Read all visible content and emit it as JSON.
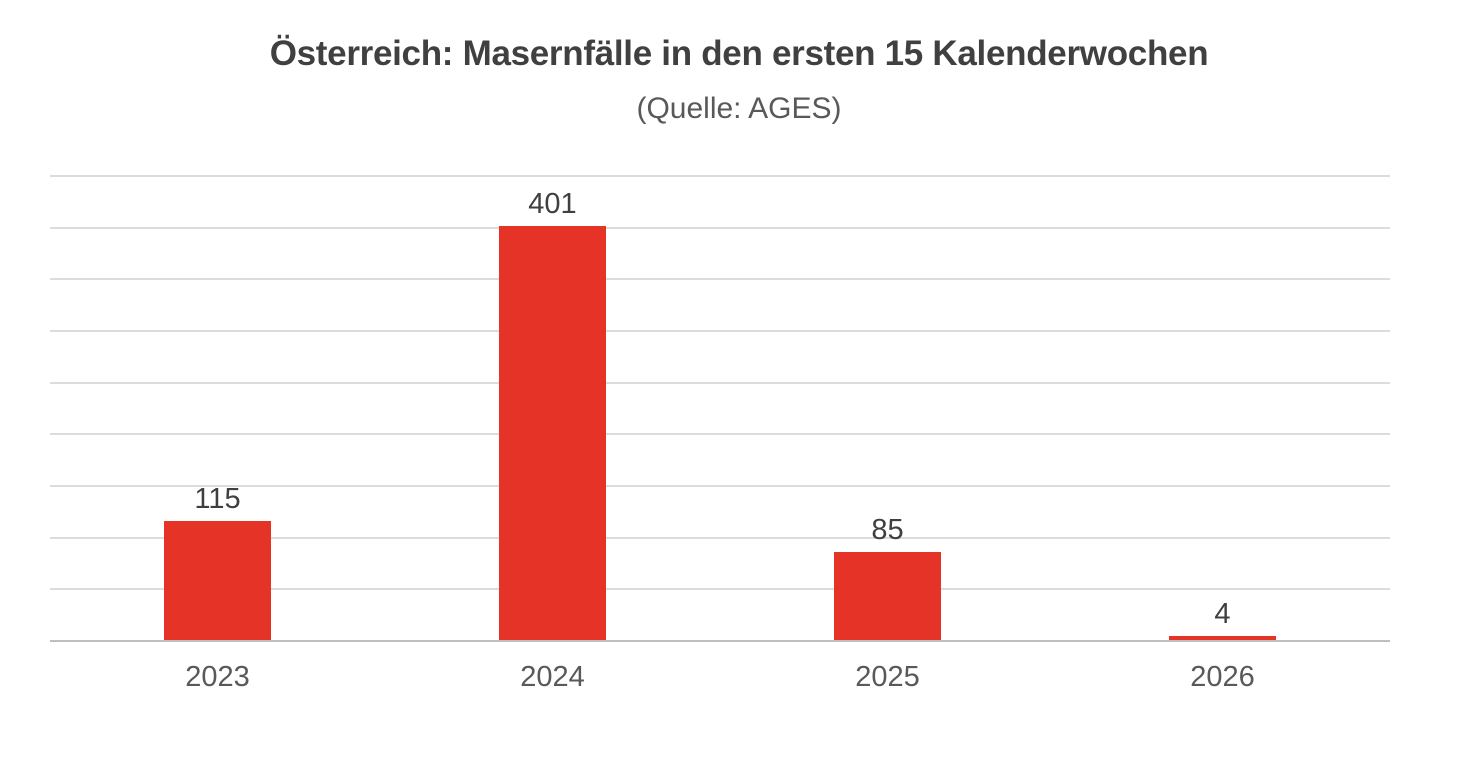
{
  "chart_data": {
    "type": "bar",
    "title": "Österreich: Masernfälle in den ersten 15 Kalenderwochen",
    "subtitle": "(Quelle: AGES)",
    "categories": [
      "2023",
      "2024",
      "2025",
      "2026"
    ],
    "values": [
      115,
      401,
      85,
      4
    ],
    "xlabel": "",
    "ylabel": "",
    "ylim": [
      0,
      450
    ],
    "gridline_step": 50,
    "grid": true,
    "legend_position": "none",
    "y_tick_labels_visible": false,
    "colors": {
      "bar": "#E63328",
      "gridline": "#DCDCDC",
      "axis_line": "#BFBFBF",
      "title": "#404040",
      "subtitle": "#595959",
      "data_label": "#3F3F3F",
      "category_label": "#595959",
      "background": "#FFFFFF"
    }
  }
}
